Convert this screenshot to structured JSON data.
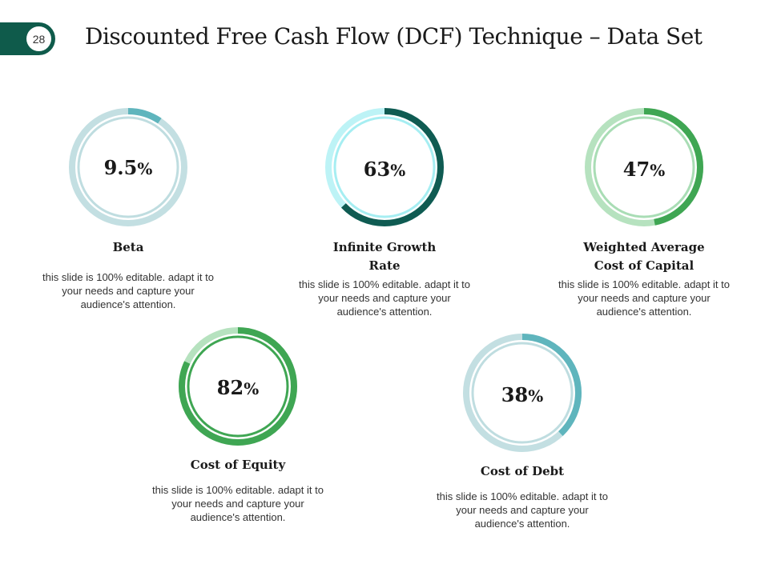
{
  "slide": {
    "number": "28",
    "title": "Discounted Free Cash Flow (DCF) Technique – Data Set"
  },
  "chart_data": [
    {
      "type": "donut",
      "name": "Beta",
      "value": 9.5,
      "display": "9.5",
      "unit": "%",
      "description": "this slide is 100% editable. adapt it to your needs and capture your audience's attention.",
      "colors": {
        "fill": "#5fb5bd",
        "track": "#c3dfe2",
        "inner": "#bfdde0"
      }
    },
    {
      "type": "donut",
      "name": "Infinite Growth Rate",
      "value": 63,
      "display": "63",
      "unit": "%",
      "description": "this slide is 100% editable. adapt it to your needs and capture your audience's attention.",
      "colors": {
        "fill": "#0f5b52",
        "track": "#bdf3f6",
        "inner": "#a6eef2"
      }
    },
    {
      "type": "donut",
      "name": "Weighted Average Cost of Capital",
      "value": 47,
      "display": "47",
      "unit": "%",
      "description": "this slide is 100% editable. adapt it to your needs and capture your audience's attention.",
      "colors": {
        "fill": "#3fa653",
        "track": "#b6e2bf",
        "inner": "#a9ddb5"
      }
    },
    {
      "type": "donut",
      "name": "Cost of Equity",
      "value": 82,
      "display": "82",
      "unit": "%",
      "description": "this slide is 100% editable. adapt it to your needs and capture your audience's attention.",
      "colors": {
        "fill": "#3fa653",
        "track": "#b6e2bf",
        "inner": "#3fa653"
      }
    },
    {
      "type": "donut",
      "name": "Cost of Debt",
      "value": 38,
      "display": "38",
      "unit": "%",
      "description": "this slide is 100% editable. adapt it to your needs and capture your audience's attention.",
      "colors": {
        "fill": "#5fb5bd",
        "track": "#c3dfe2",
        "inner": "#bfdde0"
      }
    }
  ]
}
